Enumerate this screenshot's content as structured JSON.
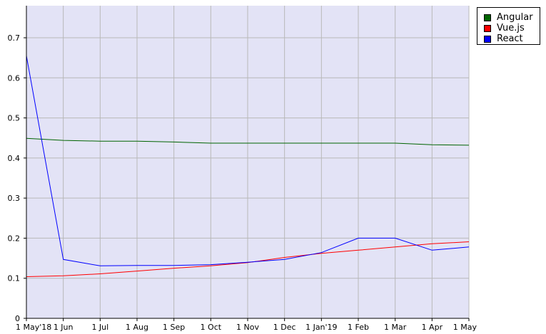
{
  "chart_data": {
    "type": "line",
    "categories": [
      "1 May'18",
      "1 Jun",
      "1 Jul",
      "1 Aug",
      "1 Sep",
      "1 Oct",
      "1 Nov",
      "1 Dec",
      "1 Jan'19",
      "1 Feb",
      "1 Mar",
      "1 Apr",
      "1 May"
    ],
    "ylim": [
      0,
      0.78
    ],
    "yticks": [
      "0",
      "0.1",
      "0.2",
      "0.3",
      "0.4",
      "0.5",
      "0.6",
      "0.7"
    ],
    "grid": true,
    "legend_position": "top-right",
    "plot_background": "#e3e3f6",
    "grid_color": "#b8b8b8",
    "series": [
      {
        "name": "Angular",
        "color": "#006400",
        "values": [
          0.449,
          0.444,
          0.442,
          0.442,
          0.44,
          0.437,
          0.437,
          0.437,
          0.437,
          0.437,
          0.437,
          0.433,
          0.432
        ]
      },
      {
        "name": "Vue.js",
        "color": "#ff0000",
        "values": [
          0.104,
          0.106,
          0.111,
          0.118,
          0.125,
          0.131,
          0.139,
          0.152,
          0.162,
          0.17,
          0.178,
          0.186,
          0.191
        ]
      },
      {
        "name": "React",
        "color": "#0000ff",
        "values": [
          0.655,
          0.147,
          0.131,
          0.132,
          0.132,
          0.134,
          0.14,
          0.147,
          0.164,
          0.2,
          0.2,
          0.17,
          0.178
        ]
      }
    ]
  }
}
